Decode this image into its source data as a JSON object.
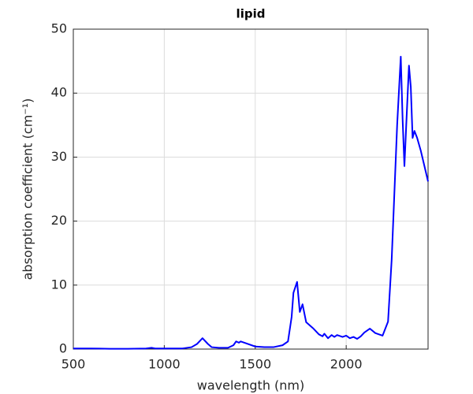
{
  "chart_data": {
    "type": "line",
    "title": "lipid",
    "x_label": "wavelength (nm)",
    "y_label": "absorption coefficient (cm⁻¹)",
    "x": [
      500,
      600,
      700,
      800,
      900,
      930,
      950,
      1000,
      1100,
      1150,
      1180,
      1210,
      1240,
      1260,
      1300,
      1350,
      1380,
      1395,
      1410,
      1420,
      1450,
      1500,
      1550,
      1600,
      1650,
      1680,
      1700,
      1710,
      1730,
      1745,
      1760,
      1780,
      1820,
      1850,
      1870,
      1880,
      1900,
      1920,
      1935,
      1950,
      1980,
      2000,
      2020,
      2040,
      2060,
      2080,
      2100,
      2130,
      2160,
      2200,
      2230,
      2250,
      2280,
      2300,
      2310,
      2320,
      2330,
      2345,
      2355,
      2365,
      2375,
      2390,
      2410,
      2450
    ],
    "series": [
      {
        "name": "lipid",
        "color": "#0000ff",
        "values": [
          0.1,
          0.1,
          0.05,
          0.05,
          0.1,
          0.2,
          0.1,
          0.1,
          0.1,
          0.3,
          0.8,
          1.7,
          0.8,
          0.3,
          0.2,
          0.2,
          0.6,
          1.2,
          1.0,
          1.2,
          0.9,
          0.4,
          0.3,
          0.3,
          0.6,
          1.2,
          5,
          8.8,
          10.5,
          5.8,
          7.0,
          4.2,
          3.2,
          2.3,
          2.0,
          2.4,
          1.7,
          2.2,
          1.9,
          2.2,
          1.9,
          2.1,
          1.7,
          1.9,
          1.6,
          2.0,
          2.6,
          3.2,
          2.5,
          2.1,
          4.3,
          14,
          35,
          45.7,
          36,
          28.6,
          35,
          44.3,
          41,
          33,
          34.1,
          33,
          31,
          26.2
        ]
      }
    ],
    "xlim": [
      500,
      2450
    ],
    "ylim": [
      0,
      50
    ],
    "xticks": [
      500,
      1000,
      1500,
      2000
    ],
    "yticks": [
      0,
      10,
      20,
      30,
      40,
      50
    ],
    "grid": true
  }
}
